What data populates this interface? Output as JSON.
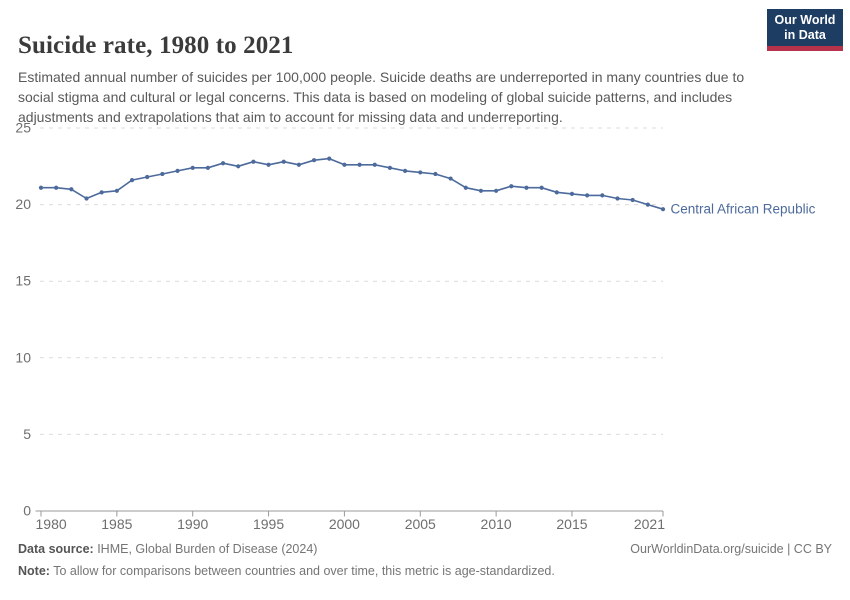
{
  "header": {
    "title": "Suicide rate, 1980 to 2021",
    "subtitle": "Estimated annual number of suicides per 100,000 people. Suicide deaths are underreported in many countries due to social stigma and cultural or legal concerns. This data is based on modeling of global suicide patterns, and includes adjustments and extrapolations that aim to account for missing data and underreporting.",
    "logo": {
      "line1": "Our World",
      "line2": "in Data"
    }
  },
  "chart_data": {
    "type": "line",
    "title": "Suicide rate, 1980 to 2021",
    "xlabel": "",
    "ylabel": "",
    "ylim": [
      0,
      25
    ],
    "y_ticks": [
      0,
      5,
      10,
      15,
      20,
      25
    ],
    "x_ticks": [
      1980,
      1985,
      1990,
      1995,
      2000,
      2005,
      2010,
      2015,
      2021
    ],
    "grid": "horizontal-dashed",
    "legend_position": "end-of-line-label",
    "x": [
      1980,
      1981,
      1982,
      1983,
      1984,
      1985,
      1986,
      1987,
      1988,
      1989,
      1990,
      1991,
      1992,
      1993,
      1994,
      1995,
      1996,
      1997,
      1998,
      1999,
      2000,
      2001,
      2002,
      2003,
      2004,
      2005,
      2006,
      2007,
      2008,
      2009,
      2010,
      2011,
      2012,
      2013,
      2014,
      2015,
      2016,
      2017,
      2018,
      2019,
      2020,
      2021
    ],
    "series": [
      {
        "name": "Central African Republic",
        "color": "#4C6A9C",
        "values": [
          21.1,
          21.1,
          21.0,
          20.4,
          20.8,
          20.9,
          21.6,
          21.8,
          22.0,
          22.2,
          22.4,
          22.4,
          22.7,
          22.5,
          22.8,
          22.6,
          22.8,
          22.6,
          22.9,
          23.0,
          22.6,
          22.6,
          22.6,
          22.4,
          22.2,
          22.1,
          22.0,
          21.7,
          21.1,
          20.9,
          20.9,
          21.2,
          21.1,
          21.1,
          20.8,
          20.7,
          20.6,
          20.6,
          20.4,
          20.3,
          20.0,
          19.7
        ]
      }
    ]
  },
  "footer": {
    "source_label": "Data source:",
    "source_text": " IHME, Global Burden of Disease (2024)",
    "rights": "OurWorldinData.org/suicide | CC BY",
    "note_label": "Note:",
    "note_text": " To allow for comparisons between countries and over time, this metric is age-standardized."
  },
  "colors": {
    "line": "#4C6A9C",
    "grid": "#dcdcdc",
    "axis": "#9a9a9a",
    "tick_label": "#6e6e6e",
    "logo_navy": "#1d3d63",
    "logo_red": "#b5334a"
  }
}
